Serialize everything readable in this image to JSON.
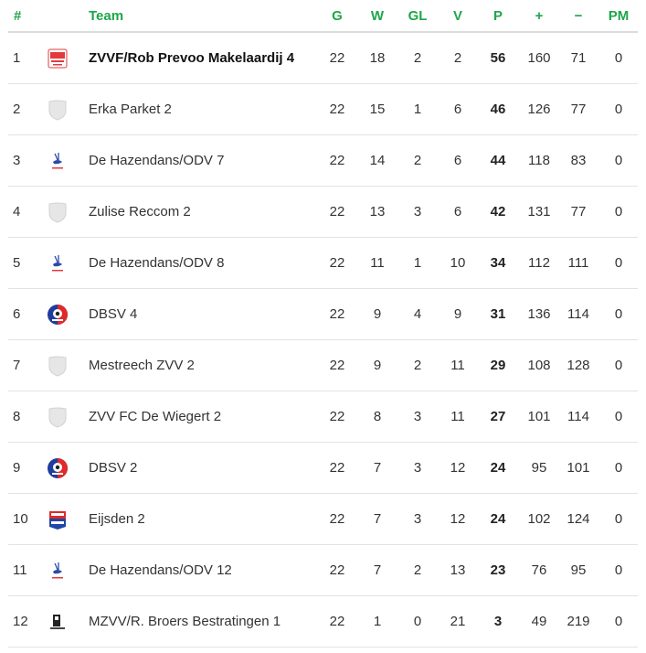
{
  "header": {
    "rank": "#",
    "team": "Team",
    "g": "G",
    "w": "W",
    "gl": "GL",
    "v": "V",
    "p": "P",
    "plus": "+",
    "minus": "−",
    "pm": "PM"
  },
  "rows": [
    {
      "rank": "1",
      "team": "ZVVF/Rob Prevoo Makelaardij 4",
      "logo": "zvvf-logo",
      "g": "22",
      "w": "18",
      "gl": "2",
      "v": "2",
      "p": "56",
      "plus": "160",
      "minus": "71",
      "pm": "0"
    },
    {
      "rank": "2",
      "team": "Erka Parket 2",
      "logo": "shield-placeholder-icon",
      "g": "22",
      "w": "15",
      "gl": "1",
      "v": "6",
      "p": "46",
      "plus": "126",
      "minus": "77",
      "pm": "0"
    },
    {
      "rank": "3",
      "team": "De Hazendans/ODV 7",
      "logo": "hazendans-logo",
      "g": "22",
      "w": "14",
      "gl": "2",
      "v": "6",
      "p": "44",
      "plus": "118",
      "minus": "83",
      "pm": "0"
    },
    {
      "rank": "4",
      "team": "Zulise Reccom 2",
      "logo": "shield-placeholder-icon",
      "g": "22",
      "w": "13",
      "gl": "3",
      "v": "6",
      "p": "42",
      "plus": "131",
      "minus": "77",
      "pm": "0"
    },
    {
      "rank": "5",
      "team": "De Hazendans/ODV 8",
      "logo": "hazendans-logo",
      "g": "22",
      "w": "11",
      "gl": "1",
      "v": "10",
      "p": "34",
      "plus": "112",
      "minus": "111",
      "pm": "0"
    },
    {
      "rank": "6",
      "team": "DBSV 4",
      "logo": "dbsv-logo",
      "g": "22",
      "w": "9",
      "gl": "4",
      "v": "9",
      "p": "31",
      "plus": "136",
      "minus": "114",
      "pm": "0"
    },
    {
      "rank": "7",
      "team": "Mestreech ZVV 2",
      "logo": "shield-placeholder-icon",
      "g": "22",
      "w": "9",
      "gl": "2",
      "v": "11",
      "p": "29",
      "plus": "108",
      "minus": "128",
      "pm": "0"
    },
    {
      "rank": "8",
      "team": "ZVV FC De Wiegert 2",
      "logo": "shield-placeholder-icon",
      "g": "22",
      "w": "8",
      "gl": "3",
      "v": "11",
      "p": "27",
      "plus": "101",
      "minus": "114",
      "pm": "0"
    },
    {
      "rank": "9",
      "team": "DBSV 2",
      "logo": "dbsv-logo",
      "g": "22",
      "w": "7",
      "gl": "3",
      "v": "12",
      "p": "24",
      "plus": "95",
      "minus": "101",
      "pm": "0"
    },
    {
      "rank": "10",
      "team": "Eijsden 2",
      "logo": "eijsden-logo",
      "g": "22",
      "w": "7",
      "gl": "3",
      "v": "12",
      "p": "24",
      "plus": "102",
      "minus": "124",
      "pm": "0"
    },
    {
      "rank": "11",
      "team": "De Hazendans/ODV 12",
      "logo": "hazendans-logo",
      "g": "22",
      "w": "7",
      "gl": "2",
      "v": "13",
      "p": "23",
      "plus": "76",
      "minus": "95",
      "pm": "0"
    },
    {
      "rank": "12",
      "team": "MZVV/R. Broers Bestratingen 1",
      "logo": "mzvv-logo",
      "g": "22",
      "w": "1",
      "gl": "0",
      "v": "21",
      "p": "3",
      "plus": "49",
      "minus": "219",
      "pm": "0"
    }
  ],
  "highlight_color": "#1ea64a"
}
